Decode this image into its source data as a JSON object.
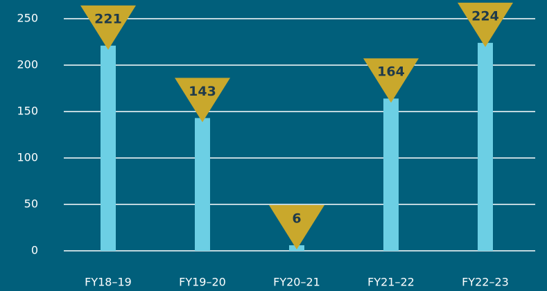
{
  "chart_data": {
    "type": "bar",
    "categories": [
      "FY18–19",
      "FY19–20",
      "FY20–21",
      "FY21–22",
      "FY22–23"
    ],
    "values": [
      221,
      143,
      6,
      164,
      224
    ],
    "color": "#6ccfe4",
    "marker_color": "#c9a82c",
    "ylim": [
      0,
      250
    ],
    "yticks": [
      0,
      50,
      100,
      150,
      200,
      250
    ],
    "grid": true
  }
}
